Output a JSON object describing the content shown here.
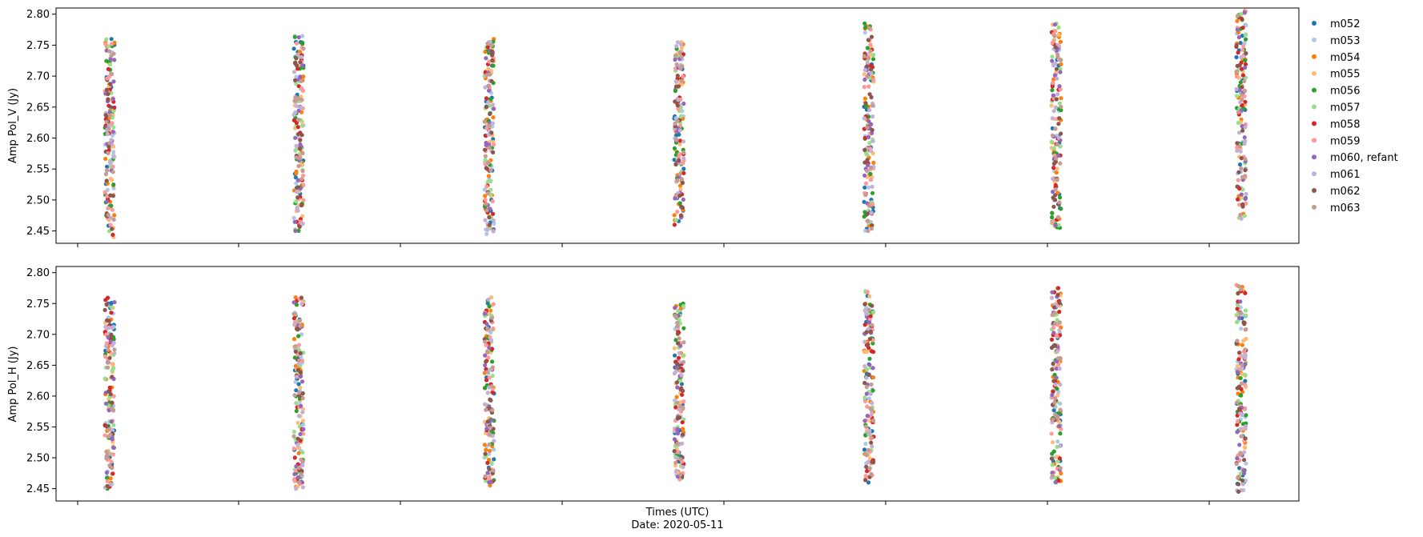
{
  "chart_data": {
    "type": "scatter",
    "xlabel": "Times (UTC)",
    "xlabel_date": "Date: 2020-05-11",
    "time_groups": 7,
    "legend": {
      "placement": "outside-right",
      "entries": [
        {
          "name": "m052",
          "color": "#1f77b4"
        },
        {
          "name": "m053",
          "color": "#aec7e8"
        },
        {
          "name": "m054",
          "color": "#ff7f0e"
        },
        {
          "name": "m055",
          "color": "#ffbb78"
        },
        {
          "name": "m056",
          "color": "#2ca02c"
        },
        {
          "name": "m057",
          "color": "#98df8a"
        },
        {
          "name": "m058",
          "color": "#d62728"
        },
        {
          "name": "m059",
          "color": "#ff9896"
        },
        {
          "name": "m060, refant",
          "color": "#9467bd"
        },
        {
          "name": "m061",
          "color": "#c5b0d5"
        },
        {
          "name": "m062",
          "color": "#8c564b"
        },
        {
          "name": "m063",
          "color": "#c49c94"
        }
      ]
    },
    "panels": [
      {
        "ylabel": "Amp Pol_V (Jy)",
        "ylim": [
          2.43,
          2.81
        ],
        "yticks": [
          "2.45",
          "2.50",
          "2.55",
          "2.60",
          "2.65",
          "2.70",
          "2.75",
          "2.80"
        ],
        "group_ranges": [
          [
            2.44,
            2.76
          ],
          [
            2.45,
            2.765
          ],
          [
            2.445,
            2.76
          ],
          [
            2.46,
            2.755
          ],
          [
            2.45,
            2.785
          ],
          [
            2.455,
            2.785
          ],
          [
            2.47,
            2.805
          ]
        ]
      },
      {
        "ylabel": "Amp Pol_H (Jy)",
        "ylim": [
          2.43,
          2.81
        ],
        "yticks": [
          "2.45",
          "2.50",
          "2.55",
          "2.60",
          "2.65",
          "2.70",
          "2.75",
          "2.80"
        ],
        "group_ranges": [
          [
            2.45,
            2.76
          ],
          [
            2.45,
            2.76
          ],
          [
            2.455,
            2.76
          ],
          [
            2.465,
            2.75
          ],
          [
            2.46,
            2.77
          ],
          [
            2.46,
            2.775
          ],
          [
            2.445,
            2.78
          ]
        ]
      }
    ]
  }
}
